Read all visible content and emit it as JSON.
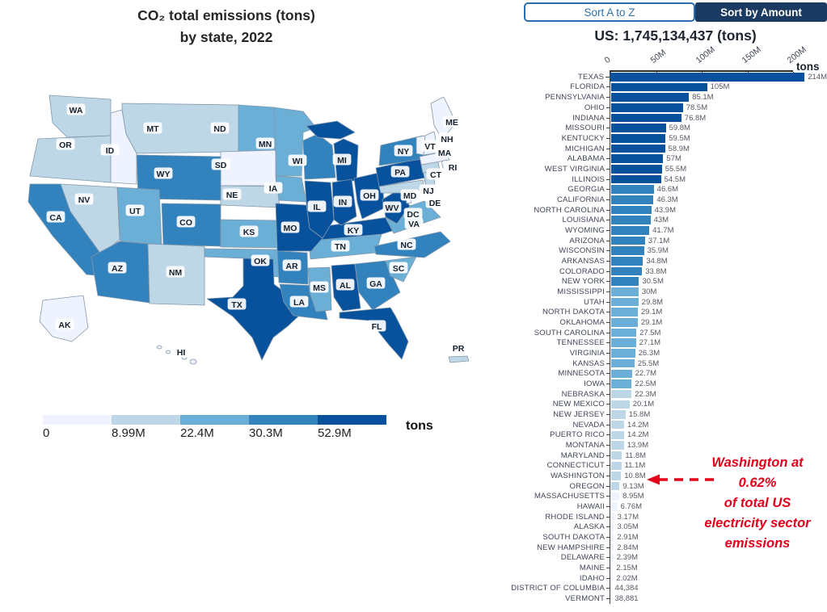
{
  "map_panel": {
    "title_line1": "CO₂ total emissions (tons)",
    "title_line2": "by state, 2022",
    "legend": {
      "tick_labels": [
        "0",
        "8.99M",
        "22.4M",
        "30.3M",
        "52.9M"
      ],
      "unit_label": "tons",
      "colors": [
        "#eff3ff",
        "#bdd7e7",
        "#6baed6",
        "#3182bd",
        "#08519c"
      ]
    },
    "states": [
      {
        "abbr": "WA",
        "bin": 2
      },
      {
        "abbr": "OR",
        "bin": 2
      },
      {
        "abbr": "ID",
        "bin": 1
      },
      {
        "abbr": "MT",
        "bin": 2
      },
      {
        "abbr": "ND",
        "bin": 3
      },
      {
        "abbr": "SD",
        "bin": 1
      },
      {
        "abbr": "MN",
        "bin": 3
      },
      {
        "abbr": "WI",
        "bin": 4
      },
      {
        "abbr": "MI",
        "bin": 5
      },
      {
        "abbr": "IA",
        "bin": 3
      },
      {
        "abbr": "NE",
        "bin": 2
      },
      {
        "abbr": "WY",
        "bin": 4
      },
      {
        "abbr": "NV",
        "bin": 2
      },
      {
        "abbr": "UT",
        "bin": 3
      },
      {
        "abbr": "CO",
        "bin": 4
      },
      {
        "abbr": "KS",
        "bin": 3
      },
      {
        "abbr": "CA",
        "bin": 4
      },
      {
        "abbr": "AZ",
        "bin": 4
      },
      {
        "abbr": "NM",
        "bin": 2
      },
      {
        "abbr": "OK",
        "bin": 3
      },
      {
        "abbr": "TX",
        "bin": 5
      },
      {
        "abbr": "AR",
        "bin": 4
      },
      {
        "abbr": "LA",
        "bin": 4
      },
      {
        "abbr": "MS",
        "bin": 3
      },
      {
        "abbr": "AL",
        "bin": 5
      },
      {
        "abbr": "GA",
        "bin": 4
      },
      {
        "abbr": "SC",
        "bin": 3
      },
      {
        "abbr": "FL",
        "bin": 5
      },
      {
        "abbr": "TN",
        "bin": 3
      },
      {
        "abbr": "KY",
        "bin": 5
      },
      {
        "abbr": "MO",
        "bin": 5
      },
      {
        "abbr": "IL",
        "bin": 5
      },
      {
        "abbr": "IN",
        "bin": 5
      },
      {
        "abbr": "OH",
        "bin": 5
      },
      {
        "abbr": "WV",
        "bin": 5
      },
      {
        "abbr": "VA",
        "bin": 3
      },
      {
        "abbr": "NC",
        "bin": 4
      },
      {
        "abbr": "PA",
        "bin": 5
      },
      {
        "abbr": "NY",
        "bin": 4
      },
      {
        "abbr": "ME",
        "bin": 1
      },
      {
        "abbr": "VT",
        "bin": 1
      },
      {
        "abbr": "NH",
        "bin": 1
      },
      {
        "abbr": "MA",
        "bin": 1
      },
      {
        "abbr": "RI",
        "bin": 1
      },
      {
        "abbr": "CT",
        "bin": 2
      },
      {
        "abbr": "NJ",
        "bin": 2
      },
      {
        "abbr": "MD",
        "bin": 2
      },
      {
        "abbr": "DE",
        "bin": 1
      },
      {
        "abbr": "DC",
        "bin": 1
      },
      {
        "abbr": "AK",
        "bin": 1
      },
      {
        "abbr": "HI",
        "bin": 1
      },
      {
        "abbr": "PR",
        "bin": 2
      }
    ]
  },
  "sort_controls": {
    "az_label": "Sort A to Z",
    "amount_label": "Sort by Amount"
  },
  "bar_panel": {
    "total_label": "US: 1,745,134,437 (tons)",
    "axis_unit_label": "tons",
    "annotation_text": "Washington at\n0.62%\nof total US\nelectricity sector\nemissions",
    "annotation_color": "#e2001a"
  },
  "chart_data": {
    "type": "bar",
    "orientation": "horizontal",
    "title": "US: 1,745,134,437 (tons)",
    "unit": "tons",
    "x_tick_labels": [
      "0",
      "50M",
      "100M",
      "150M",
      "200M"
    ],
    "x_max_millions": 200,
    "color_bins_millions": [
      8.99,
      22.4,
      30.3,
      52.9
    ],
    "bin_colors": [
      "#eff3ff",
      "#bdd7e7",
      "#6baed6",
      "#3182bd",
      "#08519c"
    ],
    "categories": [
      "TEXAS",
      "FLORIDA",
      "PENNSYLVANIA",
      "OHIO",
      "INDIANA",
      "MISSOURI",
      "KENTUCKY",
      "MICHIGAN",
      "ALABAMA",
      "WEST VIRGINIA",
      "ILLINOIS",
      "GEORGIA",
      "CALIFORNIA",
      "NORTH CAROLINA",
      "LOUISIANA",
      "WYOMING",
      "ARIZONA",
      "WISCONSIN",
      "ARKANSAS",
      "COLORADO",
      "NEW YORK",
      "MISSISSIPPI",
      "UTAH",
      "NORTH DAKOTA",
      "OKLAHOMA",
      "SOUTH CAROLINA",
      "TENNESSEE",
      "VIRGINIA",
      "KANSAS",
      "MINNESOTA",
      "IOWA",
      "NEBRASKA",
      "NEW MEXICO",
      "NEW JERSEY",
      "NEVADA",
      "PUERTO RICO",
      "MONTANA",
      "MARYLAND",
      "CONNECTICUT",
      "WASHINGTON",
      "OREGON",
      "MASSACHUSETTS",
      "HAWAII",
      "RHODE ISLAND",
      "ALASKA",
      "SOUTH DAKOTA",
      "NEW HAMPSHIRE",
      "DELAWARE",
      "MAINE",
      "IDAHO",
      "DISTRICT OF COLUMBIA",
      "VERMONT"
    ],
    "values_millions": [
      214,
      105,
      85.1,
      78.5,
      76.8,
      59.8,
      59.5,
      58.9,
      57,
      55.5,
      54.5,
      46.6,
      46.3,
      43.9,
      43,
      41.7,
      37.1,
      35.9,
      34.8,
      33.8,
      30.5,
      30,
      29.8,
      29.1,
      29.1,
      27.5,
      27.1,
      26.3,
      25.5,
      22.7,
      22.5,
      22.3,
      20.1,
      15.8,
      14.2,
      14.2,
      13.9,
      11.8,
      11.1,
      10.8,
      9.13,
      8.95,
      6.76,
      3.17,
      3.05,
      2.91,
      2.84,
      2.39,
      2.15,
      2.02,
      0.044384,
      0.038881
    ],
    "value_labels": [
      "214M",
      "105M",
      "85.1M",
      "78.5M",
      "76.8M",
      "59.8M",
      "59.5M",
      "58.9M",
      "57M",
      "55.5M",
      "54.5M",
      "46.6M",
      "46.3M",
      "43.9M",
      "43M",
      "41.7M",
      "37.1M",
      "35.9M",
      "34.8M",
      "33.8M",
      "30.5M",
      "30M",
      "29.8M",
      "29.1M",
      "29.1M",
      "27.5M",
      "27.1M",
      "26.3M",
      "25.5M",
      "22.7M",
      "22.5M",
      "22.3M",
      "20.1M",
      "15.8M",
      "14.2M",
      "14.2M",
      "13.9M",
      "11.8M",
      "11.1M",
      "10.8M",
      "9.13M",
      "8.95M",
      "6.76M",
      "3.17M",
      "3.05M",
      "2.91M",
      "2.84M",
      "2.39M",
      "2.15M",
      "2.02M",
      "44,384",
      "38,881"
    ],
    "highlighted_category": "WASHINGTON"
  }
}
